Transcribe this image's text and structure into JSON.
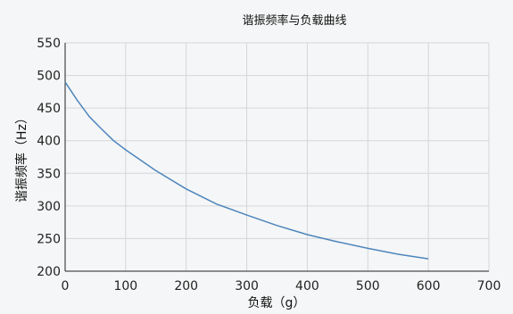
{
  "chart_data": {
    "type": "line",
    "title": "谐振频率与负载曲线",
    "xlabel": "负载（g）",
    "ylabel": "谐振频率（Hz）",
    "xlim": [
      0,
      700
    ],
    "ylim": [
      200,
      550
    ],
    "xticks": [
      0,
      100,
      200,
      300,
      400,
      500,
      600,
      700
    ],
    "yticks": [
      200,
      250,
      300,
      350,
      400,
      450,
      500,
      550
    ],
    "grid": true,
    "series_color": "#4d86bd",
    "series": [
      {
        "x": [
          0,
          20,
          40,
          60,
          80,
          100,
          150,
          200,
          250,
          300,
          350,
          400,
          450,
          500,
          550,
          600
        ],
        "y": [
          490,
          462,
          437,
          418,
          400,
          386,
          354,
          326,
          303,
          286,
          270,
          256,
          245,
          235,
          226,
          219
        ]
      }
    ]
  }
}
